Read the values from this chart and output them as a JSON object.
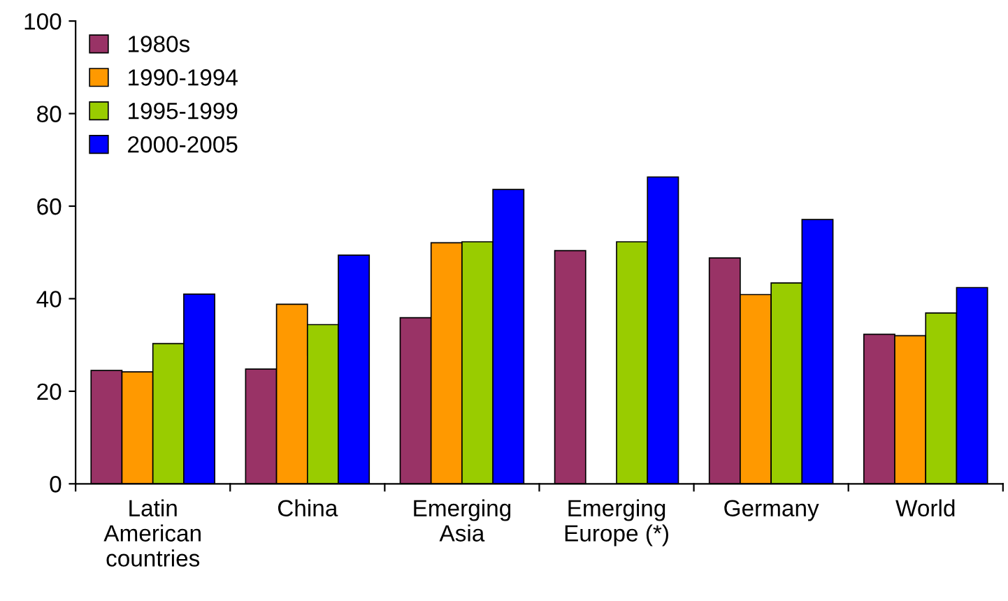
{
  "chart_data": {
    "type": "bar",
    "categories": [
      "Latin\nAmerican\ncountries",
      "China",
      "Emerging\nAsia",
      "Emerging\nEurope (*)",
      "Germany",
      "World"
    ],
    "series": [
      {
        "name": "1980s",
        "color": "#993366",
        "values": [
          24.5,
          24.8,
          35.9,
          50.4,
          48.8,
          32.3
        ]
      },
      {
        "name": "1990-1994",
        "color": "#ff9900",
        "values": [
          24.2,
          38.8,
          52.1,
          null,
          40.9,
          32.0
        ]
      },
      {
        "name": "1995-1999",
        "color": "#99cc00",
        "values": [
          30.3,
          34.4,
          52.3,
          52.3,
          43.4,
          36.9
        ]
      },
      {
        "name": "2000-2005",
        "color": "#0000ff",
        "values": [
          41.0,
          49.4,
          63.6,
          66.3,
          57.1,
          42.4
        ]
      }
    ],
    "ylim": [
      0,
      100
    ],
    "yticks": [
      0,
      20,
      40,
      60,
      80,
      100
    ],
    "grid": false,
    "legend": "top left"
  }
}
